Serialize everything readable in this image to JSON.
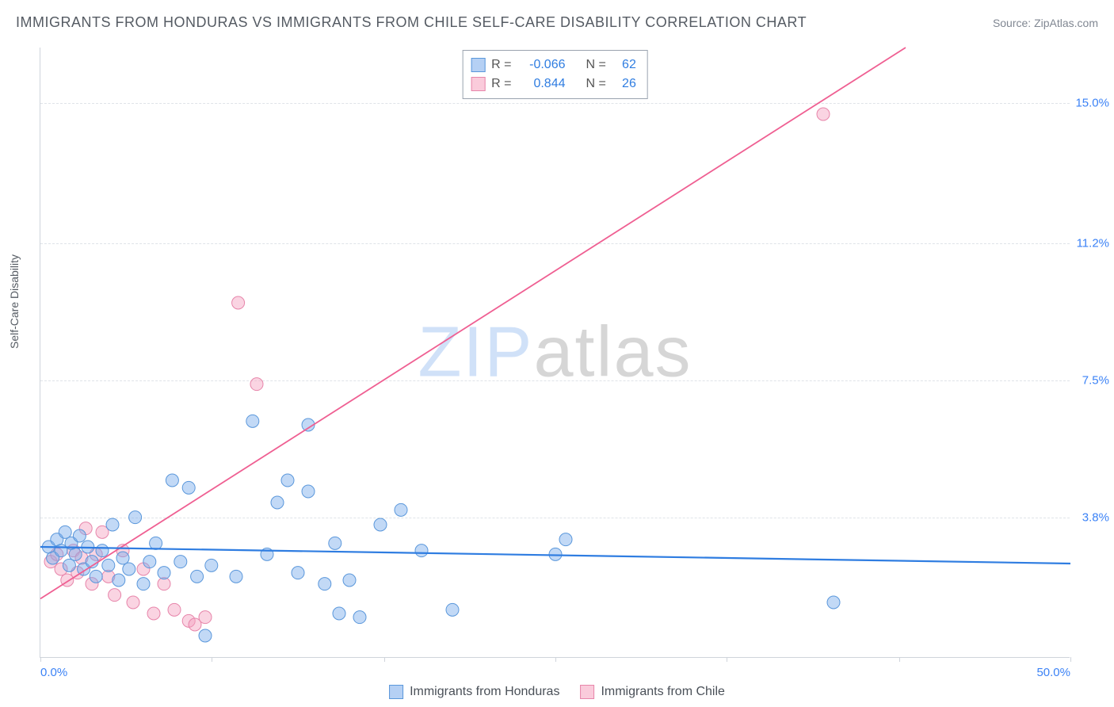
{
  "title": "IMMIGRANTS FROM HONDURAS VS IMMIGRANTS FROM CHILE SELF-CARE DISABILITY CORRELATION CHART",
  "source": "Source: ZipAtlas.com",
  "y_axis_label": "Self-Care Disability",
  "watermark": {
    "part1": "ZIP",
    "part2": "atlas"
  },
  "chart": {
    "type": "scatter",
    "background_color": "#ffffff",
    "grid_color": "#dfe3e8",
    "axis_color": "#cfd4db",
    "label_color": "#3b82f6",
    "xlim": [
      0,
      50
    ],
    "ylim": [
      0,
      16.5
    ],
    "y_ticks": [
      {
        "v": 3.8,
        "label": "3.8%"
      },
      {
        "v": 7.5,
        "label": "7.5%"
      },
      {
        "v": 11.2,
        "label": "11.2%"
      },
      {
        "v": 15.0,
        "label": "15.0%"
      }
    ],
    "x_ticks": [
      {
        "v": 0,
        "label": "0.0%"
      },
      {
        "v": 8.3,
        "label": ""
      },
      {
        "v": 16.7,
        "label": ""
      },
      {
        "v": 25.0,
        "label": ""
      },
      {
        "v": 33.3,
        "label": ""
      },
      {
        "v": 41.7,
        "label": ""
      },
      {
        "v": 50,
        "label": "50.0%"
      }
    ],
    "marker_radius": 8,
    "series": {
      "honduras": {
        "name": "Immigrants from Honduras",
        "color_fill": "rgba(120,170,235,0.45)",
        "color_stroke": "#5a97db",
        "trend_color": "#2f7de1",
        "trend": {
          "x1": 0,
          "y1": 3.0,
          "x2": 50,
          "y2": 2.55
        },
        "r": "-0.066",
        "n": "62",
        "points": [
          [
            0.4,
            3.0
          ],
          [
            0.6,
            2.7
          ],
          [
            0.8,
            3.2
          ],
          [
            1.0,
            2.9
          ],
          [
            1.2,
            3.4
          ],
          [
            1.4,
            2.5
          ],
          [
            1.5,
            3.1
          ],
          [
            1.7,
            2.8
          ],
          [
            1.9,
            3.3
          ],
          [
            2.1,
            2.4
          ],
          [
            2.3,
            3.0
          ],
          [
            2.5,
            2.6
          ],
          [
            2.7,
            2.2
          ],
          [
            3.0,
            2.9
          ],
          [
            3.3,
            2.5
          ],
          [
            3.5,
            3.6
          ],
          [
            3.8,
            2.1
          ],
          [
            4.0,
            2.7
          ],
          [
            4.3,
            2.4
          ],
          [
            4.6,
            3.8
          ],
          [
            5.0,
            2.0
          ],
          [
            5.3,
            2.6
          ],
          [
            5.6,
            3.1
          ],
          [
            6.0,
            2.3
          ],
          [
            6.4,
            4.8
          ],
          [
            6.8,
            2.6
          ],
          [
            7.2,
            4.6
          ],
          [
            7.6,
            2.2
          ],
          [
            8.0,
            0.6
          ],
          [
            8.3,
            2.5
          ],
          [
            9.5,
            2.2
          ],
          [
            10.3,
            6.4
          ],
          [
            11.0,
            2.8
          ],
          [
            11.5,
            4.2
          ],
          [
            12.0,
            4.8
          ],
          [
            12.5,
            2.3
          ],
          [
            13.0,
            4.5
          ],
          [
            13.0,
            6.3
          ],
          [
            13.8,
            2.0
          ],
          [
            14.3,
            3.1
          ],
          [
            14.5,
            1.2
          ],
          [
            15.0,
            2.1
          ],
          [
            15.5,
            1.1
          ],
          [
            16.5,
            3.6
          ],
          [
            17.5,
            4.0
          ],
          [
            18.5,
            2.9
          ],
          [
            20.0,
            1.3
          ],
          [
            25.0,
            2.8
          ],
          [
            25.5,
            3.2
          ],
          [
            38.5,
            1.5
          ]
        ]
      },
      "chile": {
        "name": "Immigrants from Chile",
        "color_fill": "rgba(245,160,190,0.45)",
        "color_stroke": "#e785aa",
        "trend_color": "#ef5f92",
        "trend": {
          "x1": 0,
          "y1": 1.6,
          "x2": 42,
          "y2": 16.5
        },
        "r": "0.844",
        "n": "26",
        "points": [
          [
            0.5,
            2.6
          ],
          [
            0.8,
            2.8
          ],
          [
            1.0,
            2.4
          ],
          [
            1.3,
            2.1
          ],
          [
            1.6,
            2.9
          ],
          [
            1.8,
            2.3
          ],
          [
            2.0,
            2.7
          ],
          [
            2.2,
            3.5
          ],
          [
            2.5,
            2.0
          ],
          [
            2.7,
            2.8
          ],
          [
            3.0,
            3.4
          ],
          [
            3.3,
            2.2
          ],
          [
            3.6,
            1.7
          ],
          [
            4.0,
            2.9
          ],
          [
            4.5,
            1.5
          ],
          [
            5.0,
            2.4
          ],
          [
            5.5,
            1.2
          ],
          [
            6.0,
            2.0
          ],
          [
            6.5,
            1.3
          ],
          [
            7.2,
            1.0
          ],
          [
            7.5,
            0.9
          ],
          [
            8.0,
            1.1
          ],
          [
            9.6,
            9.6
          ],
          [
            10.5,
            7.4
          ],
          [
            38.0,
            14.7
          ]
        ]
      }
    }
  },
  "stats_header": {
    "r_label": "R =",
    "n_label": "N ="
  }
}
